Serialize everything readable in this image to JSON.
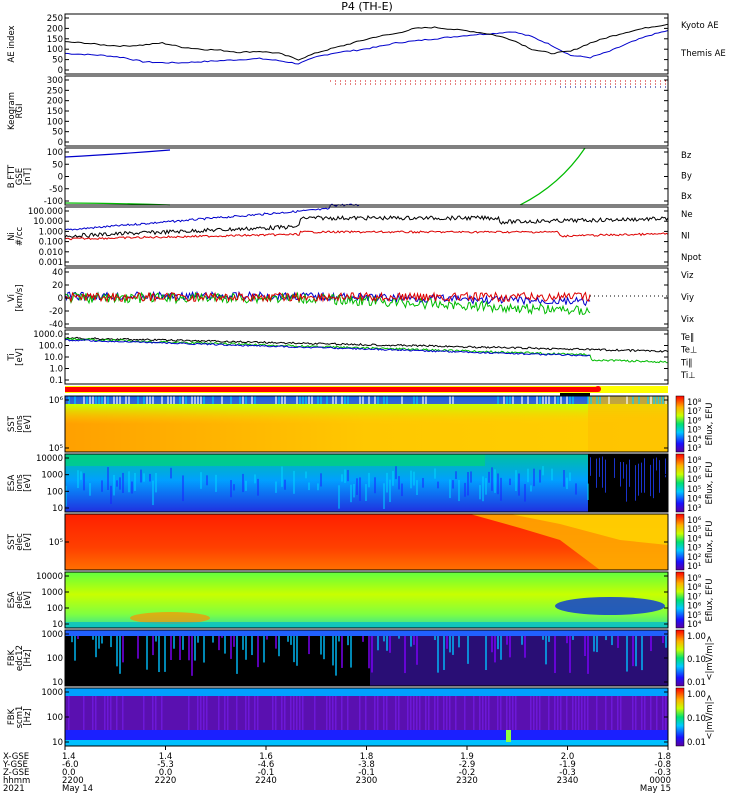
{
  "title": "P4 (TH-E)",
  "colors": {
    "black": "#000000",
    "blue": "#0000cc",
    "red": "#dd0000",
    "green": "#00bb00"
  },
  "chart_data": {
    "type": "line",
    "title": "P4 (TH-E)",
    "panels": [
      {
        "id": "ae",
        "ylabel": "AE index",
        "yticks": [
          "250",
          "200",
          "150",
          "100",
          "50",
          "0"
        ],
        "legend": [
          {
            "text": "Kyoto AE",
            "color": "#0000cc"
          },
          {
            "text": "Themis AE",
            "color": "#000000"
          }
        ],
        "series": [
          {
            "name": "Kyoto AE",
            "color": "#0000cc",
            "values": [
              80,
              75,
              70,
              60,
              40,
              35,
              35,
              40,
              45,
              50,
              55,
              45,
              30,
              65,
              85,
              95,
              110,
              130,
              140,
              150,
              160,
              170,
              175,
              185,
              160,
              120,
              70,
              60,
              90,
              130,
              165,
              190
            ]
          },
          {
            "name": "Themis AE",
            "color": "#000000",
            "values": [
              135,
              130,
              120,
              115,
              120,
              130,
              110,
              100,
              95,
              85,
              90,
              80,
              50,
              85,
              110,
              135,
              160,
              175,
              200,
              205,
              195,
              185,
              170,
              145,
              100,
              80,
              90,
              130,
              160,
              185,
              205,
              220
            ]
          }
        ]
      },
      {
        "id": "keo",
        "ylabel": "Keogram",
        "ylabel2": "RGI",
        "yticks": [
          "300",
          "250",
          "200",
          "150",
          "100",
          "50",
          "0"
        ]
      },
      {
        "id": "b",
        "ylabel": "B FTT",
        "ylabel2": "GSE",
        "ylabel3": "[nT]",
        "yticks": [
          "100",
          "50",
          "0",
          "-50",
          "-100"
        ],
        "legend": [
          {
            "text": "Bz",
            "color": "#dd0000"
          },
          {
            "text": "By",
            "color": "#00bb00"
          },
          {
            "text": "Bx",
            "color": "#0000cc"
          }
        ]
      },
      {
        "id": "n",
        "ylabel": "Ni",
        "ylabel2": "#/cc",
        "yticks": [
          "100.000",
          "10.000",
          "1.000",
          "0.100",
          "0.010",
          "0.001"
        ],
        "legend": [
          {
            "text": "Ne",
            "color": "#dd0000"
          },
          {
            "text": "NI",
            "color": "#000000"
          },
          {
            "text": "Npot",
            "color": "#0000cc"
          }
        ]
      },
      {
        "id": "v",
        "ylabel": "Vi",
        "ylabel2": "[km/s]",
        "yticks": [
          "40",
          "20",
          "0",
          "-20",
          "-40"
        ],
        "legend": [
          {
            "text": "Viz",
            "color": "#dd0000"
          },
          {
            "text": "Viy",
            "color": "#00bb00"
          },
          {
            "text": "Vix",
            "color": "#0000cc"
          }
        ]
      },
      {
        "id": "t",
        "ylabel": "Ti",
        "ylabel2": "[eV]",
        "yticks": [
          "1000.0",
          "100.0",
          "10.0",
          "1.0",
          "0.1"
        ],
        "legend": [
          {
            "text": "Te‖",
            "color": "#000000"
          },
          {
            "text": "Te⊥",
            "color": "#dd0000"
          },
          {
            "text": "Ti‖",
            "color": "#00bb00"
          },
          {
            "text": "Ti⊥",
            "color": "#0000cc"
          }
        ]
      },
      {
        "id": "sst_i",
        "ylabel": "SST",
        "ylabel2": "ions",
        "ylabel3": "[eV]",
        "yticks": [
          "10⁶",
          "10⁵"
        ],
        "cbar": "Eflux, EFU",
        "cticks": [
          "10⁸",
          "10⁷",
          "10⁶",
          "10⁵",
          "10⁴",
          "10³"
        ]
      },
      {
        "id": "esa_i",
        "ylabel": "ESA",
        "ylabel2": "ions",
        "ylabel3": "[eV]",
        "yticks": [
          "10000",
          "1000",
          "100",
          "10"
        ],
        "cbar": "Eflux, EFU",
        "cticks": [
          "10⁸",
          "10⁷",
          "10⁶",
          "10⁵",
          "10⁴",
          "10³"
        ]
      },
      {
        "id": "sst_e",
        "ylabel": "SST",
        "ylabel2": "elec",
        "ylabel3": "[eV]",
        "yticks": [
          "10⁵"
        ],
        "cbar": "Eflux, EFU",
        "cticks": [
          "10⁶",
          "10⁵",
          "10⁴",
          "10³",
          "10²",
          "10¹"
        ]
      },
      {
        "id": "esa_e",
        "ylabel": "ESA",
        "ylabel2": "elec",
        "ylabel3": "[eV]",
        "yticks": [
          "10000",
          "1000",
          "100",
          "10"
        ],
        "cbar": "Eflux, EFU",
        "cticks": [
          "10⁹",
          "10⁸",
          "10⁷",
          "10⁶",
          "10⁵",
          "10⁴"
        ]
      },
      {
        "id": "fbk1",
        "ylabel": "FBK",
        "ylabel2": "edc12",
        "ylabel3": "[Hz]",
        "yticks": [
          "1000",
          "100",
          "10"
        ],
        "cbar": "<|mV/m|>",
        "cticks": [
          "1.00",
          "0.10",
          "0.01"
        ]
      },
      {
        "id": "fbk2",
        "ylabel": "FBK",
        "ylabel2": "scm1",
        "ylabel3": "[Hz]",
        "yticks": [
          "1000",
          "100",
          "10"
        ],
        "cbar": "<|mV/m|>",
        "cticks": [
          "1.00",
          "0.10",
          "0.01"
        ]
      }
    ],
    "xaxis": {
      "row_labels": [
        "X-GSE",
        "Y-GSE",
        "Z-GSE",
        "hhmm",
        "2021"
      ],
      "columns": [
        {
          "r": [
            "1.4",
            "-6.0",
            "0.0",
            "2200",
            "May 14"
          ]
        },
        {
          "r": [
            "1.4",
            "-5.3",
            "0.0",
            "2220",
            ""
          ]
        },
        {
          "r": [
            "1.6",
            "-4.6",
            "-0.1",
            "2240",
            ""
          ]
        },
        {
          "r": [
            "1.8",
            "-3.8",
            "-0.1",
            "2300",
            ""
          ]
        },
        {
          "r": [
            "1.9",
            "-2.9",
            "-0.2",
            "2320",
            ""
          ]
        },
        {
          "r": [
            "2.0",
            "-1.9",
            "-0.3",
            "2340",
            ""
          ]
        },
        {
          "r": [
            "1.8",
            "-0.8",
            "-0.3",
            "0000",
            "May 15"
          ]
        }
      ]
    }
  }
}
